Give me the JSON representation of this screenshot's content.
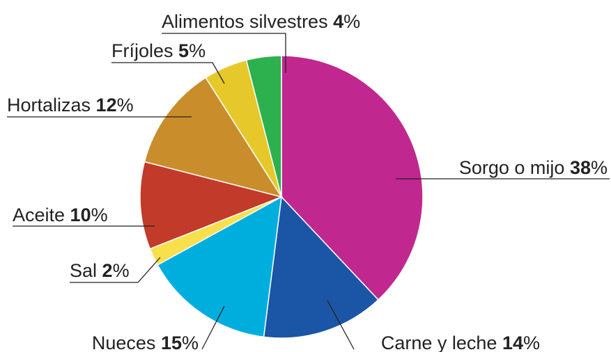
{
  "chart_data": {
    "type": "pie",
    "categories": [
      "Sorgo o mijo",
      "Carne y leche",
      "Nueces",
      "Sal",
      "Aceite",
      "Hortalizas",
      "Fríjoles",
      "Alimentos silvestres"
    ],
    "values": [
      38,
      14,
      15,
      2,
      10,
      12,
      5,
      4
    ],
    "value_labels": [
      "38%",
      "14%",
      "15%",
      "2%",
      "10%",
      "12%",
      "5%",
      "4%"
    ],
    "colors": [
      "#c0288f",
      "#1b55a5",
      "#00aede",
      "#f8e04c",
      "#c23a2a",
      "#c98e2b",
      "#e6c82a",
      "#2db14e"
    ]
  }
}
